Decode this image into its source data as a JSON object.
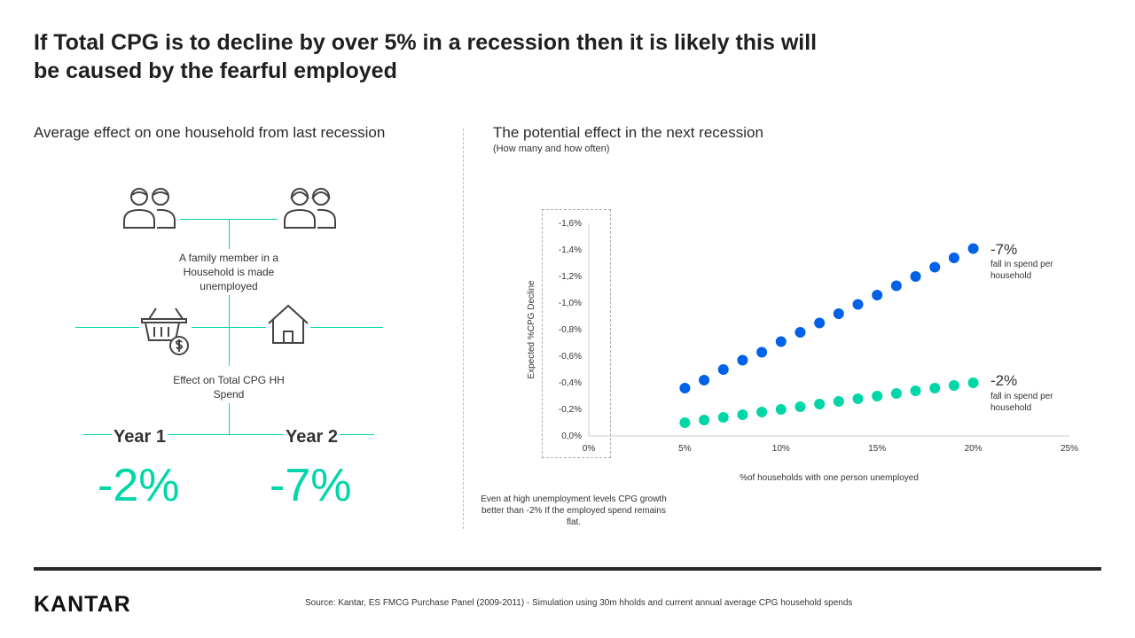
{
  "title": "If Total CPG is to decline by over 5% in a recession then it is likely this will be caused by the fearful employed",
  "left": {
    "heading": "Average effect on one household from last recession",
    "step1_text": "A family member in a Household is made unemployed",
    "step2_text": "Effect on Total CPG HH Spend",
    "year1_label": "Year 1",
    "year2_label": "Year 2",
    "year1_value": "-2%",
    "year2_value": "-7%",
    "icons": [
      "family-icon",
      "family-icon",
      "shopping-basket-icon",
      "house-icon"
    ]
  },
  "right": {
    "heading": "The potential effect in the next recession",
    "subheading": "(How many and how often)",
    "note": "Even at high unemployment levels CPG growth better than -2% If the employed spend  remains flat.",
    "callout_high_value": "-7%",
    "callout_high_text": "fall in spend per household",
    "callout_low_value": "-2%",
    "callout_low_text": "fall in spend per household"
  },
  "chart_data": {
    "type": "scatter",
    "title": "The potential effect in the next recession",
    "xlabel": "%of households with one person unemployed",
    "ylabel": "Expected %CPG Decline",
    "xlim": [
      0,
      25
    ],
    "ylim": [
      0,
      1.6
    ],
    "x_ticks": [
      "0%",
      "5%",
      "10%",
      "15%",
      "20%",
      "25%"
    ],
    "y_ticks": [
      "0,0%",
      "-0,2%",
      "-0,4%",
      "-0,6%",
      "-0,8%",
      "-1,0%",
      "-1,2%",
      "-1,4%",
      "-1,6%"
    ],
    "series": [
      {
        "name": "-7% fall in spend per household",
        "color": "#0062e6",
        "x": [
          5,
          6,
          7,
          8,
          9,
          10,
          11,
          12,
          13,
          14,
          15,
          16,
          17,
          18,
          19,
          20
        ],
        "y": [
          0.36,
          0.42,
          0.5,
          0.57,
          0.63,
          0.71,
          0.78,
          0.85,
          0.92,
          0.99,
          1.06,
          1.13,
          1.2,
          1.27,
          1.34,
          1.41
        ]
      },
      {
        "name": "-2% fall in spend per household",
        "color": "#00d6a8",
        "x": [
          5,
          6,
          7,
          8,
          9,
          10,
          11,
          12,
          13,
          14,
          15,
          16,
          17,
          18,
          19,
          20
        ],
        "y": [
          0.1,
          0.12,
          0.14,
          0.16,
          0.18,
          0.2,
          0.22,
          0.24,
          0.26,
          0.28,
          0.3,
          0.32,
          0.34,
          0.36,
          0.38,
          0.4
        ]
      }
    ]
  },
  "footer": {
    "logo": "KANTAR",
    "source": "Source: Kantar, ES FMCG Purchase Panel (2009-2011)  - Simulation  using 30m hholds and current annual average CPG  household spends"
  }
}
